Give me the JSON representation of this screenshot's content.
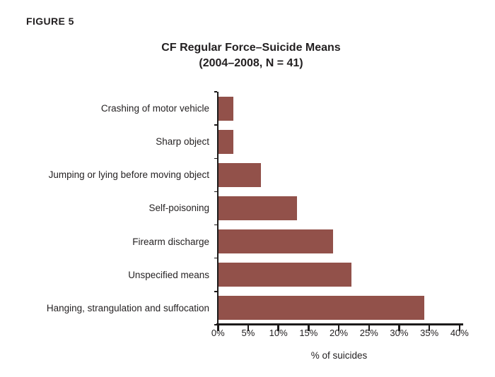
{
  "figure_label": "FIGURE 5",
  "chart_data": {
    "type": "bar",
    "orientation": "horizontal",
    "title": "CF Regular Force–Suicide Means",
    "subtitle": "(2004–2008, N = 41)",
    "xlabel": "% of suicides",
    "categories": [
      "Crashing of motor vehicle",
      "Sharp object",
      "Jumping or lying before moving object",
      "Self-poisoning",
      "Firearm discharge",
      "Unspecified means",
      "Hanging, strangulation and suffocation"
    ],
    "values": [
      2.4,
      2.4,
      7.0,
      13.0,
      19.0,
      22.0,
      34.0
    ],
    "unit": "%",
    "xlim": [
      0,
      40
    ],
    "xtick_labels": [
      "0%",
      "5%",
      "10%",
      "15%",
      "20%",
      "25%",
      "30%",
      "35%",
      "40%"
    ],
    "grid": "off",
    "legend": "none",
    "bar_color": "#92514A",
    "axis_color": "#1c1a1a",
    "text_color": "#262324"
  }
}
